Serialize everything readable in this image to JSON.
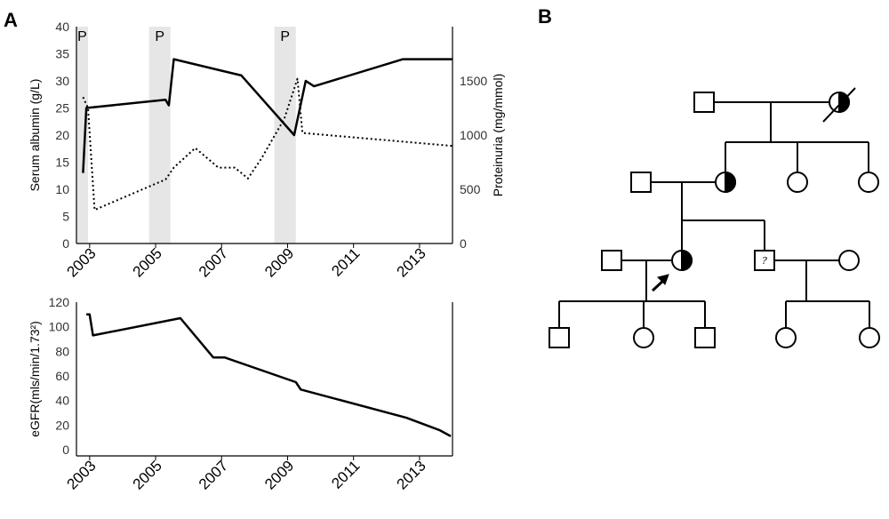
{
  "panels": {
    "a": "A",
    "b": "B"
  },
  "chart_data": [
    {
      "type": "line",
      "x_ticks": [
        "2003",
        "2005",
        "2007",
        "2009",
        "2011",
        "2013"
      ],
      "xlim": [
        2002.6,
        2014.0
      ],
      "ylabel": "Serum albumin (g/L)",
      "ylim": [
        0,
        40
      ],
      "y_ticks": [
        0,
        5,
        10,
        15,
        20,
        25,
        30,
        35,
        40
      ],
      "ylabel_right": "Proteinuria (mg/mmol)",
      "ylim_right": [
        0,
        2000
      ],
      "y_ticks_right": [
        0,
        500,
        1000,
        1500
      ],
      "shaded_periods": [
        {
          "label": "P",
          "start": 2002.6,
          "end": 2002.95
        },
        {
          "label": "P",
          "start": 2004.8,
          "end": 2005.45
        },
        {
          "label": "P",
          "start": 2008.6,
          "end": 2009.25
        }
      ],
      "series": [
        {
          "axis": "left",
          "style": "solid",
          "x": [
            2002.8,
            2002.9,
            2005.3,
            2005.4,
            2005.55,
            2007.6,
            2009.2,
            2009.55,
            2009.8,
            2012.5,
            2014.0
          ],
          "y": [
            13,
            25,
            26.5,
            25.5,
            34,
            31,
            20,
            30,
            29,
            34,
            34
          ]
        },
        {
          "axis": "right",
          "style": "dotted",
          "x": [
            2002.8,
            2002.95,
            2003.15,
            2005.3,
            2005.55,
            2006.2,
            2006.4,
            2006.9,
            2007.4,
            2007.8,
            2008.2,
            2008.9,
            2009.3,
            2009.45,
            2014.0
          ],
          "y": [
            1350,
            1250,
            310,
            590,
            700,
            880,
            830,
            700,
            700,
            600,
            780,
            1150,
            1520,
            1020,
            900
          ]
        }
      ]
    },
    {
      "type": "line",
      "x_ticks": [
        "2003",
        "2005",
        "2007",
        "2009",
        "2011",
        "2013"
      ],
      "xlim": [
        2002.6,
        2014.0
      ],
      "ylabel": "eGFR(mls/min/1.73²)",
      "ylim": [
        -5,
        120
      ],
      "y_ticks": [
        0,
        20,
        40,
        60,
        80,
        100,
        120
      ],
      "series": [
        {
          "style": "solid",
          "x": [
            2002.9,
            2003.0,
            2003.1,
            2005.75,
            2006.75,
            2007.1,
            2009.25,
            2009.4,
            2012.6,
            2013.6,
            2013.95
          ],
          "y": [
            110,
            110,
            93,
            107,
            75,
            75,
            55,
            49,
            26,
            16,
            11
          ]
        }
      ]
    }
  ],
  "pedigree": {
    "question_mark": "?"
  }
}
